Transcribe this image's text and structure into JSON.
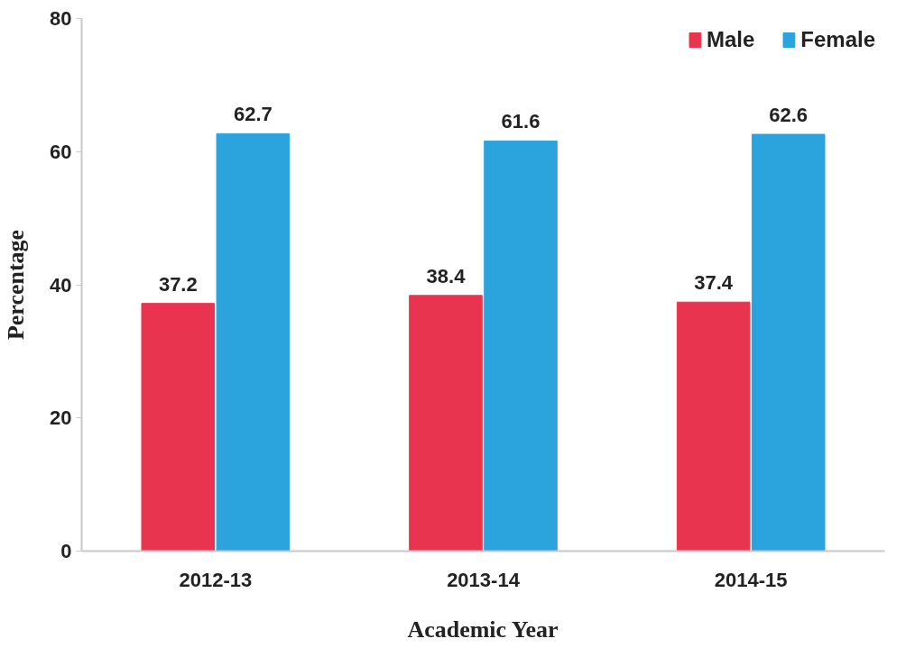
{
  "chart_data": {
    "type": "bar",
    "xlabel": "Academic Year",
    "ylabel": "Percentage",
    "categories": [
      "2012-13",
      "2013-14",
      "2014-15"
    ],
    "series": [
      {
        "name": "Male",
        "color": "#e8344e",
        "values": [
          37.2,
          38.4,
          37.4
        ]
      },
      {
        "name": "Female",
        "color": "#2ba3dc",
        "values": [
          62.7,
          61.6,
          62.6
        ]
      }
    ],
    "ylim": [
      0,
      80
    ],
    "yticks": [
      0,
      20,
      40,
      60,
      80
    ],
    "data_labels": true,
    "legend": "top right"
  }
}
